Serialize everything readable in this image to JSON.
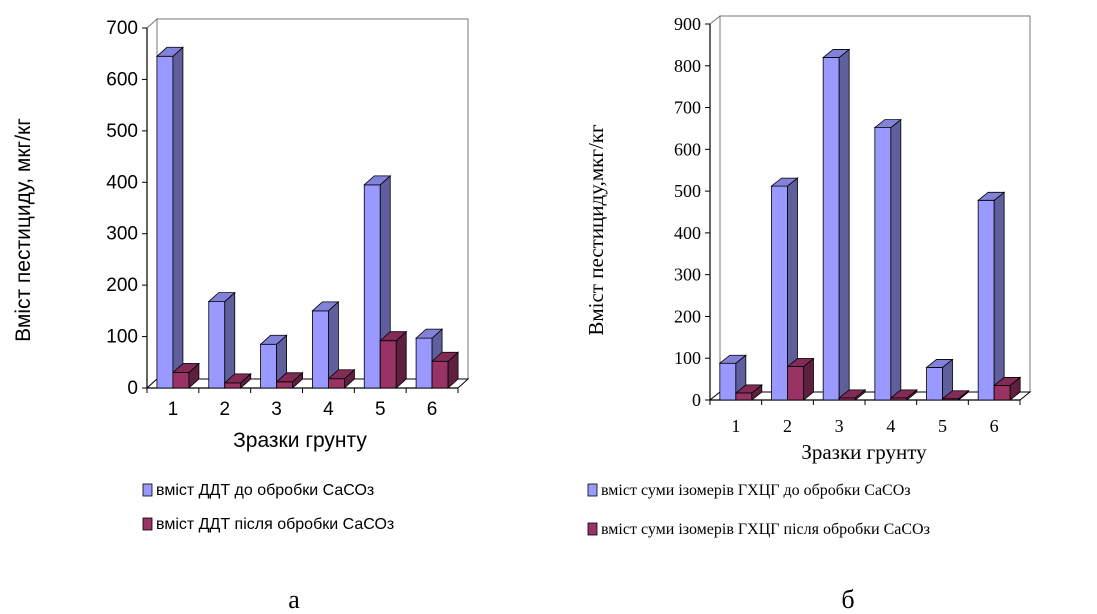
{
  "chart_data": [
    {
      "type": "bar",
      "ylabel": "Вміст пестициду, мкг/кг",
      "xlabel": "Зразки грунту",
      "categories": [
        "1",
        "2",
        "3",
        "4",
        "5",
        "6"
      ],
      "yticks": [
        "0",
        "100",
        "200",
        "300",
        "400",
        "500",
        "600",
        "700"
      ],
      "ylim": [
        0,
        700
      ],
      "series": [
        {
          "name": "вміст ДДТ до обробки СаСОз",
          "values": [
            645,
            168,
            85,
            150,
            395,
            97
          ],
          "color": "#9999ff"
        },
        {
          "name": "вміст ДДТ після обробки СаСОз",
          "values": [
            30,
            10,
            12,
            18,
            92,
            52
          ],
          "color": "#993366"
        }
      ],
      "panel_label": "а",
      "grid": false,
      "legend_position": "bottom"
    },
    {
      "type": "bar",
      "ylabel": "Вміст пестициду,мкг/кг",
      "xlabel": "Зразки грунту",
      "categories": [
        "1",
        "2",
        "3",
        "4",
        "5",
        "6"
      ],
      "yticks": [
        "0",
        "100",
        "200",
        "300",
        "400",
        "500",
        "600",
        "700",
        "800",
        "900"
      ],
      "ylim": [
        0,
        900
      ],
      "series": [
        {
          "name": "вміст суми ізомерів ГХЦГ до обробки СаСОз",
          "values": [
            88,
            512,
            820,
            652,
            78,
            478
          ],
          "color": "#9999ff"
        },
        {
          "name": "вміст суми ізомерів ГХЦГ після обробки СаСОз",
          "values": [
            17,
            80,
            5,
            5,
            3,
            35
          ],
          "color": "#993366"
        }
      ],
      "panel_label": "б",
      "grid": false,
      "legend_position": "bottom"
    }
  ]
}
